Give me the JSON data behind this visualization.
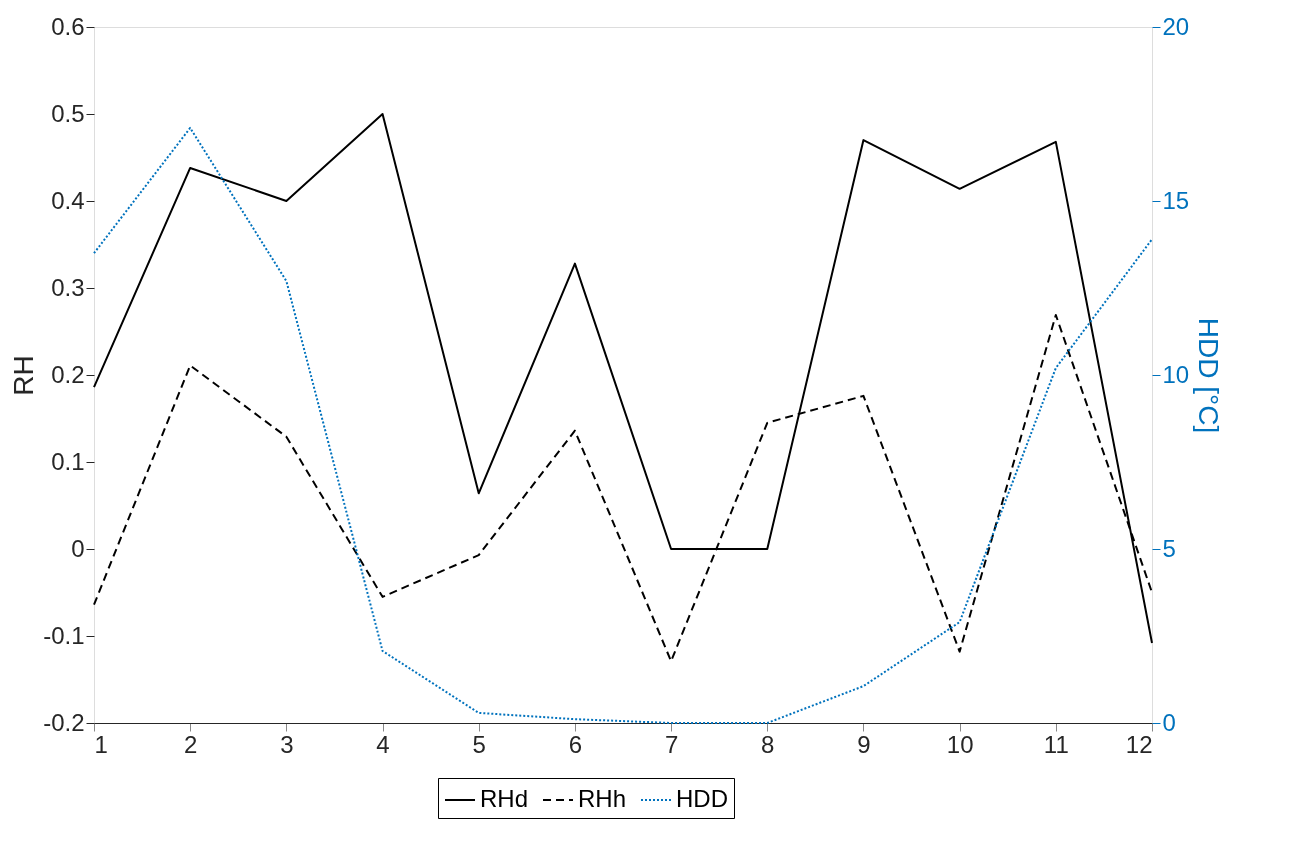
{
  "chart_data": {
    "type": "line",
    "ylabel": "RH",
    "y2label": "HDD [°C]",
    "x": [
      1,
      2,
      3,
      4,
      5,
      6,
      7,
      8,
      9,
      10,
      11,
      12
    ],
    "xlim": [
      1,
      12
    ],
    "xticks": [
      1,
      2,
      3,
      4,
      5,
      6,
      7,
      8,
      9,
      10,
      11,
      12
    ],
    "ylim": [
      -0.2,
      0.6
    ],
    "yticks": [
      -0.2,
      -0.1,
      0,
      0.1,
      0.2,
      0.3,
      0.4,
      0.5,
      0.6
    ],
    "y2lim": [
      0,
      20
    ],
    "y2ticks": [
      0,
      5,
      10,
      15,
      20
    ],
    "grid": false,
    "legend": "bottom",
    "marker": "none",
    "series": [
      {
        "name": "RHd",
        "color": "#000000",
        "line_style": "solid",
        "values": [
          0.186,
          0.438,
          0.4,
          0.5,
          0.064,
          0.328,
          0,
          0,
          0.47,
          0.414,
          0.468,
          -0.108
        ]
      },
      {
        "name": "RHh",
        "color": "#000000",
        "line_style": "dashed",
        "values": [
          -0.064,
          0.211,
          0.129,
          -0.055,
          -0.007,
          0.136,
          -0.129,
          0.145,
          0.176,
          -0.118,
          0.269,
          -0.05
        ]
      },
      {
        "name": "HDD",
        "color": "#0072bd",
        "line_style": "dotted",
        "axis": "y2",
        "values": [
          13.5,
          17.1,
          12.7,
          2.07,
          0.29,
          0.11,
          0,
          0,
          1.06,
          2.9,
          10.2,
          13.9
        ]
      }
    ]
  }
}
